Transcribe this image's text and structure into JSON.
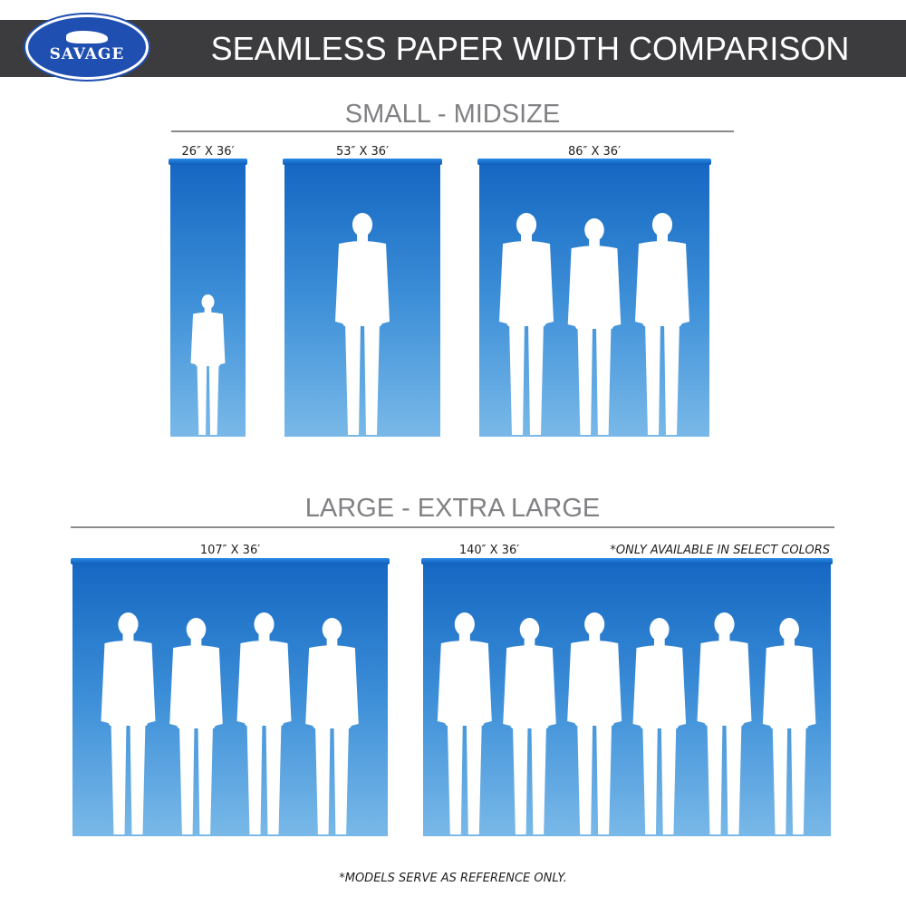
{
  "header": {
    "logo_text": "SAVAGE",
    "title": "SEAMLESS PAPER WIDTH COMPARISON"
  },
  "sections": [
    {
      "title": "SMALL - MIDSIZE"
    },
    {
      "title": "LARGE - EXTRA LARGE"
    }
  ],
  "panels": [
    {
      "size_label": "26″ X 36′",
      "figures": 1
    },
    {
      "size_label": "53″ X 36′",
      "figures": 1
    },
    {
      "size_label": "86″ X 36′",
      "figures": 3
    },
    {
      "size_label": "107″ X 36′",
      "figures": 4
    },
    {
      "size_label": "140″ X 36′",
      "figures": 6
    }
  ],
  "availability_note": "*ONLY AVAILABLE IN SELECT COLORS",
  "footnote": "*MODELS SERVE AS REFERENCE ONLY.",
  "colors": {
    "header": "#3c3c3e",
    "logo": "#1f4fb0",
    "paper_top": "#1567c2",
    "paper_bottom": "#79b9e8"
  }
}
